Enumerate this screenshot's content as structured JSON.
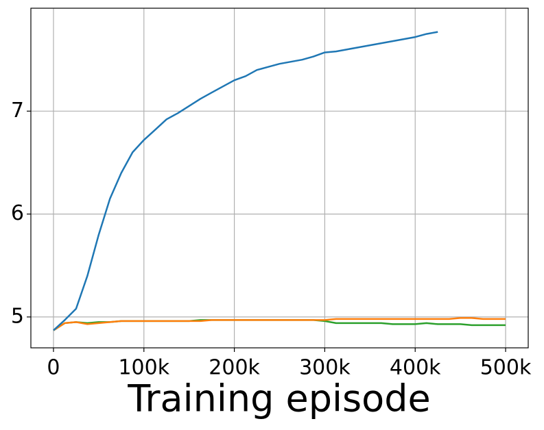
{
  "chart_data": {
    "type": "line",
    "x_label": "Training episode",
    "x": [
      0,
      12500,
      25000,
      37500,
      50000,
      62500,
      75000,
      87500,
      100000,
      112500,
      125000,
      137500,
      150000,
      162500,
      175000,
      187500,
      200000,
      212500,
      225000,
      237500,
      250000,
      262500,
      275000,
      287500,
      300000,
      312500,
      325000,
      337500,
      350000,
      362500,
      375000,
      387500,
      400000,
      412500,
      425000,
      437500,
      450000,
      462500,
      475000,
      487500,
      500000
    ],
    "series": [
      {
        "color": "#1f77b4",
        "values": [
          4.87,
          4.97,
          5.08,
          5.4,
          5.8,
          6.15,
          6.4,
          6.6,
          6.72,
          6.82,
          6.92,
          6.98,
          7.05,
          7.12,
          7.18,
          7.24,
          7.3,
          7.34,
          7.4,
          7.43,
          7.46,
          7.48,
          7.5,
          7.53,
          7.57,
          7.58,
          7.6,
          7.62,
          7.64,
          7.66,
          7.68,
          7.7,
          7.72,
          7.75,
          7.77,
          null,
          null,
          null,
          null,
          null,
          null
        ]
      },
      {
        "color": "#ff7f0e",
        "values": [
          4.87,
          4.94,
          4.95,
          4.93,
          4.94,
          4.95,
          4.96,
          4.96,
          4.96,
          4.96,
          4.96,
          4.96,
          4.96,
          4.96,
          4.97,
          4.97,
          4.97,
          4.97,
          4.97,
          4.97,
          4.97,
          4.97,
          4.97,
          4.97,
          4.97,
          4.98,
          4.98,
          4.98,
          4.98,
          4.98,
          4.98,
          4.98,
          4.98,
          4.98,
          4.98,
          4.98,
          4.99,
          4.99,
          4.98,
          4.98,
          4.98
        ]
      },
      {
        "color": "#2ca02c",
        "values": [
          4.87,
          4.94,
          4.95,
          4.94,
          4.95,
          4.95,
          4.96,
          4.96,
          4.96,
          4.96,
          4.96,
          4.96,
          4.96,
          4.97,
          4.97,
          4.97,
          4.97,
          4.97,
          4.97,
          4.97,
          4.97,
          4.97,
          4.97,
          4.97,
          4.96,
          4.94,
          4.94,
          4.94,
          4.94,
          4.94,
          4.93,
          4.93,
          4.93,
          4.94,
          4.93,
          4.93,
          4.93,
          4.92,
          4.92,
          4.92,
          4.92
        ]
      }
    ],
    "xlim": [
      -25000,
      525000
    ],
    "ylim": [
      4.7,
      8.0
    ],
    "xticks": [
      0,
      {
        "value": 100000,
        "label": "100k"
      },
      {
        "value": 200000,
        "label": "200k"
      },
      {
        "value": 300000,
        "label": "300k"
      },
      {
        "value": 400000,
        "label": "400k"
      },
      {
        "value": 500000,
        "label": "500k"
      }
    ],
    "yticks": [
      5,
      6,
      7
    ],
    "grid": true
  }
}
